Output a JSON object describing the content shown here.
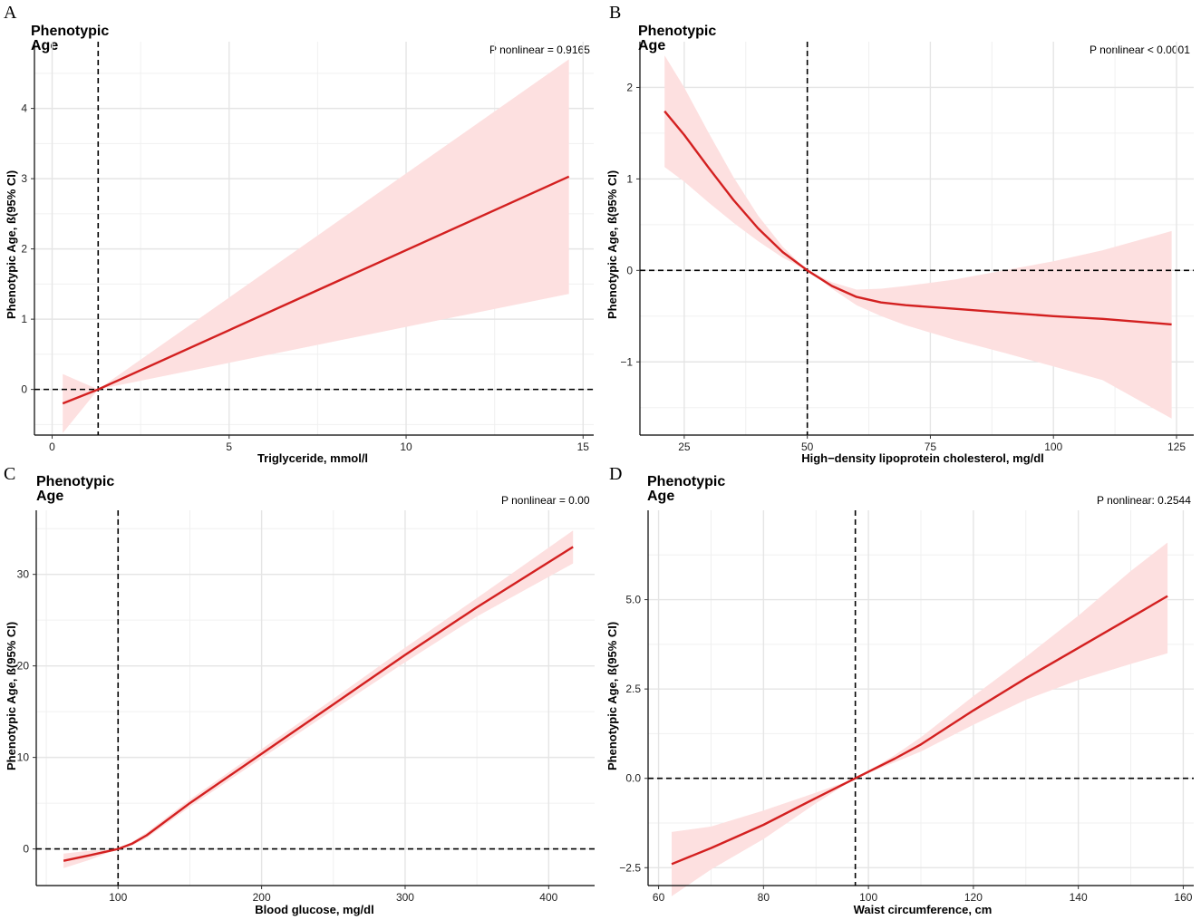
{
  "colors": {
    "line": "#d32020",
    "band": "#fde0e0",
    "grid": "#e5e5e5",
    "ref": "#000000"
  },
  "chart_data": [
    {
      "type": "line",
      "panel": "A",
      "title": "Phenotypic Age",
      "annotation": "P nonlinear = 0.9165",
      "xlabel": "Triglyceride, mmol/l",
      "ylabel": "Phenotypic Age, ß(95% CI)",
      "xlim": [
        -0.5,
        15.3
      ],
      "ylim": [
        -0.65,
        4.95
      ],
      "xticks": [
        0,
        5,
        10,
        15
      ],
      "xtick_labels": [
        "0",
        "5",
        "10",
        "15"
      ],
      "yticks": [
        0,
        1,
        2,
        3,
        4
      ],
      "ytick_labels": [
        "0",
        "1",
        "2",
        "3",
        "4"
      ],
      "ref_x": 1.3,
      "ref_y": 0,
      "series": [
        {
          "name": "estimate",
          "x": [
            0.3,
            1.3,
            14.6
          ],
          "y": [
            -0.2,
            0.0,
            3.03
          ],
          "lower": [
            -0.62,
            0.0,
            1.36
          ],
          "upper": [
            0.22,
            0.0,
            4.7
          ]
        }
      ]
    },
    {
      "type": "line",
      "panel": "B",
      "title": "Phenotypic Age",
      "annotation": "P nonlinear < 0.0001",
      "xlabel": "High−density lipoprotein cholesterol, mg/dl",
      "ylabel": "Phenotypic Age, ß(95% CI)",
      "xlim": [
        16,
        128.5
      ],
      "ylim": [
        -1.8,
        2.5
      ],
      "xticks": [
        25,
        50,
        75,
        100,
        125
      ],
      "xtick_labels": [
        "25",
        "50",
        "75",
        "100",
        "125"
      ],
      "yticks": [
        -1,
        0,
        1,
        2
      ],
      "ytick_labels": [
        "−1",
        "0",
        "1",
        "2"
      ],
      "ref_x": 50,
      "ref_y": 0,
      "series": [
        {
          "name": "estimate",
          "x": [
            21,
            25,
            30,
            35,
            40,
            45,
            50,
            55,
            60,
            65,
            70,
            80,
            90,
            100,
            110,
            124
          ],
          "y": [
            1.74,
            1.48,
            1.12,
            0.77,
            0.46,
            0.2,
            0.0,
            -0.17,
            -0.29,
            -0.35,
            -0.38,
            -0.42,
            -0.46,
            -0.5,
            -0.53,
            -0.59
          ],
          "lower": [
            1.13,
            0.97,
            0.74,
            0.52,
            0.32,
            0.14,
            0.0,
            -0.2,
            -0.38,
            -0.5,
            -0.6,
            -0.76,
            -0.9,
            -1.05,
            -1.2,
            -1.62
          ],
          "upper": [
            2.35,
            2.0,
            1.5,
            1.02,
            0.6,
            0.26,
            0.0,
            -0.13,
            -0.21,
            -0.2,
            -0.17,
            -0.1,
            0.0,
            0.1,
            0.22,
            0.43
          ]
        }
      ]
    },
    {
      "type": "line",
      "panel": "C",
      "title": "Phenotypic Age",
      "annotation": "P nonlinear = 0.00",
      "xlabel": "Blood glucose, mg/dl",
      "ylabel": "Phenotypic Age, ß(95% CI)",
      "xlim": [
        43,
        432
      ],
      "ylim": [
        -4,
        37
      ],
      "xticks": [
        100,
        200,
        300,
        400
      ],
      "xtick_labels": [
        "100",
        "200",
        "300",
        "400"
      ],
      "yticks": [
        0,
        10,
        20,
        30
      ],
      "ytick_labels": [
        "0",
        "10",
        "20",
        "30"
      ],
      "ref_x": 100,
      "ref_y": 0,
      "series": [
        {
          "name": "estimate",
          "x": [
            62,
            80,
            100,
            110,
            120,
            150,
            200,
            250,
            300,
            350,
            417
          ],
          "y": [
            -1.3,
            -0.7,
            0.0,
            0.6,
            1.5,
            5.0,
            10.4,
            15.8,
            21.2,
            26.4,
            33.0
          ],
          "lower": [
            -2.1,
            -1.2,
            0.0,
            0.4,
            1.2,
            4.6,
            9.9,
            15.2,
            20.4,
            25.4,
            31.2
          ],
          "upper": [
            -0.5,
            -0.2,
            0.0,
            0.8,
            1.8,
            5.4,
            10.9,
            16.4,
            22.0,
            27.4,
            34.8
          ]
        }
      ]
    },
    {
      "type": "line",
      "panel": "D",
      "title": "Phenotypic Age",
      "annotation": "P nonlinear: 0.2544",
      "xlabel": "Waist circumference, cm",
      "ylabel": "Phenotypic Age, ß(95% CI)",
      "xlim": [
        58,
        162
      ],
      "ylim": [
        -3.0,
        7.5
      ],
      "xticks": [
        60,
        80,
        100,
        120,
        140,
        160
      ],
      "xtick_labels": [
        "60",
        "80",
        "100",
        "120",
        "140",
        "160"
      ],
      "yticks": [
        -2.5,
        0,
        2.5,
        5
      ],
      "ytick_labels": [
        "−2.5",
        "0.0",
        "2.5",
        "5.0"
      ],
      "ref_x": 97.5,
      "ref_y": 0,
      "series": [
        {
          "name": "estimate",
          "x": [
            62.5,
            70,
            80,
            90,
            97.5,
            105,
            110,
            120,
            130,
            140,
            150,
            157
          ],
          "y": [
            -2.4,
            -1.95,
            -1.3,
            -0.55,
            0.0,
            0.55,
            0.95,
            1.9,
            2.8,
            3.65,
            4.5,
            5.1
          ],
          "lower": [
            -3.3,
            -2.55,
            -1.7,
            -0.7,
            0.0,
            0.45,
            0.75,
            1.5,
            2.2,
            2.75,
            3.2,
            3.5
          ],
          "upper": [
            -1.5,
            -1.35,
            -0.9,
            -0.4,
            0.0,
            0.65,
            1.15,
            2.3,
            3.4,
            4.55,
            5.8,
            6.6
          ]
        }
      ]
    }
  ]
}
